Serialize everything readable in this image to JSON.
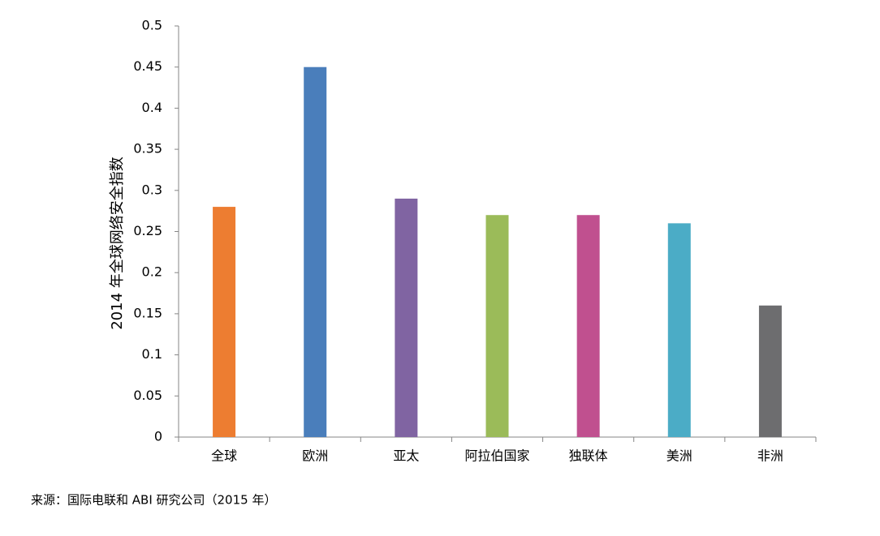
{
  "chart_data": {
    "type": "bar",
    "y_label": "2014 年全球网络安全指数",
    "source": "来源：国际电联和 ABI 研究公司（2015 年）",
    "categories": [
      "全球",
      "欧洲",
      "亚太",
      "阿拉伯国家",
      "独联体",
      "美洲",
      "非洲"
    ],
    "values": [
      0.28,
      0.45,
      0.29,
      0.27,
      0.27,
      0.26,
      0.16
    ],
    "colors": [
      "#ed7d31",
      "#4a7ebb",
      "#8064a2",
      "#9bbb59",
      "#c0508f",
      "#4bacc6",
      "#6d6d6f"
    ],
    "ylim": [
      0,
      0.5
    ],
    "yticks": [
      0,
      0.05,
      0.1,
      0.15,
      0.2,
      0.25,
      0.3,
      0.35,
      0.4,
      0.45,
      0.5
    ],
    "grid": false
  }
}
